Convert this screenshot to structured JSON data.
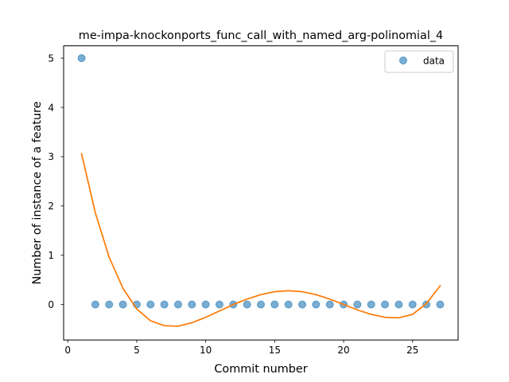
{
  "chart_data": {
    "type": "scatter",
    "title": "me-impa-knockonports_func_call_with_named_arg-polinomial_4",
    "xlabel": "Commit number",
    "ylabel": "Number of instance of a feature",
    "xlim": [
      -0.3,
      28.3
    ],
    "ylim": [
      -0.72,
      5.25
    ],
    "xticks": [
      0,
      5,
      10,
      15,
      20,
      25
    ],
    "yticks": [
      0,
      1,
      2,
      3,
      4,
      5
    ],
    "legend": {
      "label": "data",
      "position": "top-right"
    },
    "series": [
      {
        "name": "data",
        "kind": "scatter",
        "color": "#1f77b4",
        "x": [
          1,
          2,
          3,
          4,
          5,
          6,
          7,
          8,
          9,
          10,
          11,
          12,
          13,
          14,
          15,
          16,
          17,
          18,
          19,
          20,
          21,
          22,
          23,
          24,
          25,
          26,
          27
        ],
        "y": [
          5,
          0,
          0,
          0,
          0,
          0,
          0,
          0,
          0,
          0,
          0,
          0,
          0,
          0,
          0,
          0,
          0,
          0,
          0,
          0,
          0,
          0,
          0,
          0,
          0,
          0,
          0
        ]
      },
      {
        "kind": "line",
        "color": "#ff7f0e",
        "x": [
          1,
          2,
          3,
          4,
          5,
          6,
          7,
          8,
          9,
          10,
          11,
          12,
          13,
          14,
          15,
          16,
          17,
          18,
          19,
          20,
          21,
          22,
          23,
          24,
          25,
          26,
          27
        ],
        "y": [
          3.06,
          1.86,
          0.96,
          0.33,
          -0.09,
          -0.33,
          -0.43,
          -0.44,
          -0.37,
          -0.26,
          -0.13,
          0.0,
          0.11,
          0.2,
          0.26,
          0.28,
          0.26,
          0.2,
          0.11,
          0.0,
          -0.11,
          -0.2,
          -0.26,
          -0.27,
          -0.2,
          0.02,
          0.38
        ]
      }
    ]
  }
}
